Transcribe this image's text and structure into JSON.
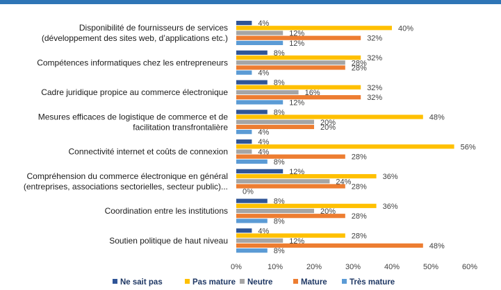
{
  "chart_data": {
    "type": "bar",
    "orientation": "horizontal",
    "categories": [
      [
        "Disponibilité de fournisseurs de services",
        "(développement des sites web, d’applications etc.)"
      ],
      [
        "Compétences informatiques chez les entrepreneurs"
      ],
      [
        "Cadre juridique propice au commerce électronique"
      ],
      [
        "Mesures efficaces de logistique de commerce et de",
        "facilitation transfrontalière"
      ],
      [
        "Connectivité internet et coûts de connexion"
      ],
      [
        "Compréhension du commerce électronique en général",
        "(entreprises, associations sectorielles, secteur public)..."
      ],
      [
        "Coordination entre les institutions"
      ],
      [
        "Soutien politique de haut niveau"
      ]
    ],
    "series": [
      {
        "name": "Ne sait pas",
        "color": "#2f5597",
        "values": [
          4,
          8,
          8,
          8,
          4,
          12,
          8,
          4
        ]
      },
      {
        "name": "Pas mature",
        "color": "#ffc000",
        "values": [
          40,
          32,
          32,
          48,
          56,
          36,
          36,
          28
        ]
      },
      {
        "name": "Neutre",
        "color": "#a5a5a5",
        "values": [
          12,
          28,
          16,
          20,
          4,
          24,
          20,
          12
        ]
      },
      {
        "name": "Mature",
        "color": "#ed7d31",
        "values": [
          32,
          28,
          32,
          20,
          28,
          28,
          28,
          48
        ]
      },
      {
        "name": "Très mature",
        "color": "#5b9bd5",
        "values": [
          12,
          4,
          12,
          4,
          8,
          0,
          8,
          8
        ]
      }
    ],
    "value_suffix": "%",
    "xlim": [
      0,
      60
    ],
    "xticks": [
      "0%",
      "10%",
      "20%",
      "30%",
      "40%",
      "50%",
      "60%"
    ],
    "grid": false,
    "legend_position": "bottom"
  }
}
